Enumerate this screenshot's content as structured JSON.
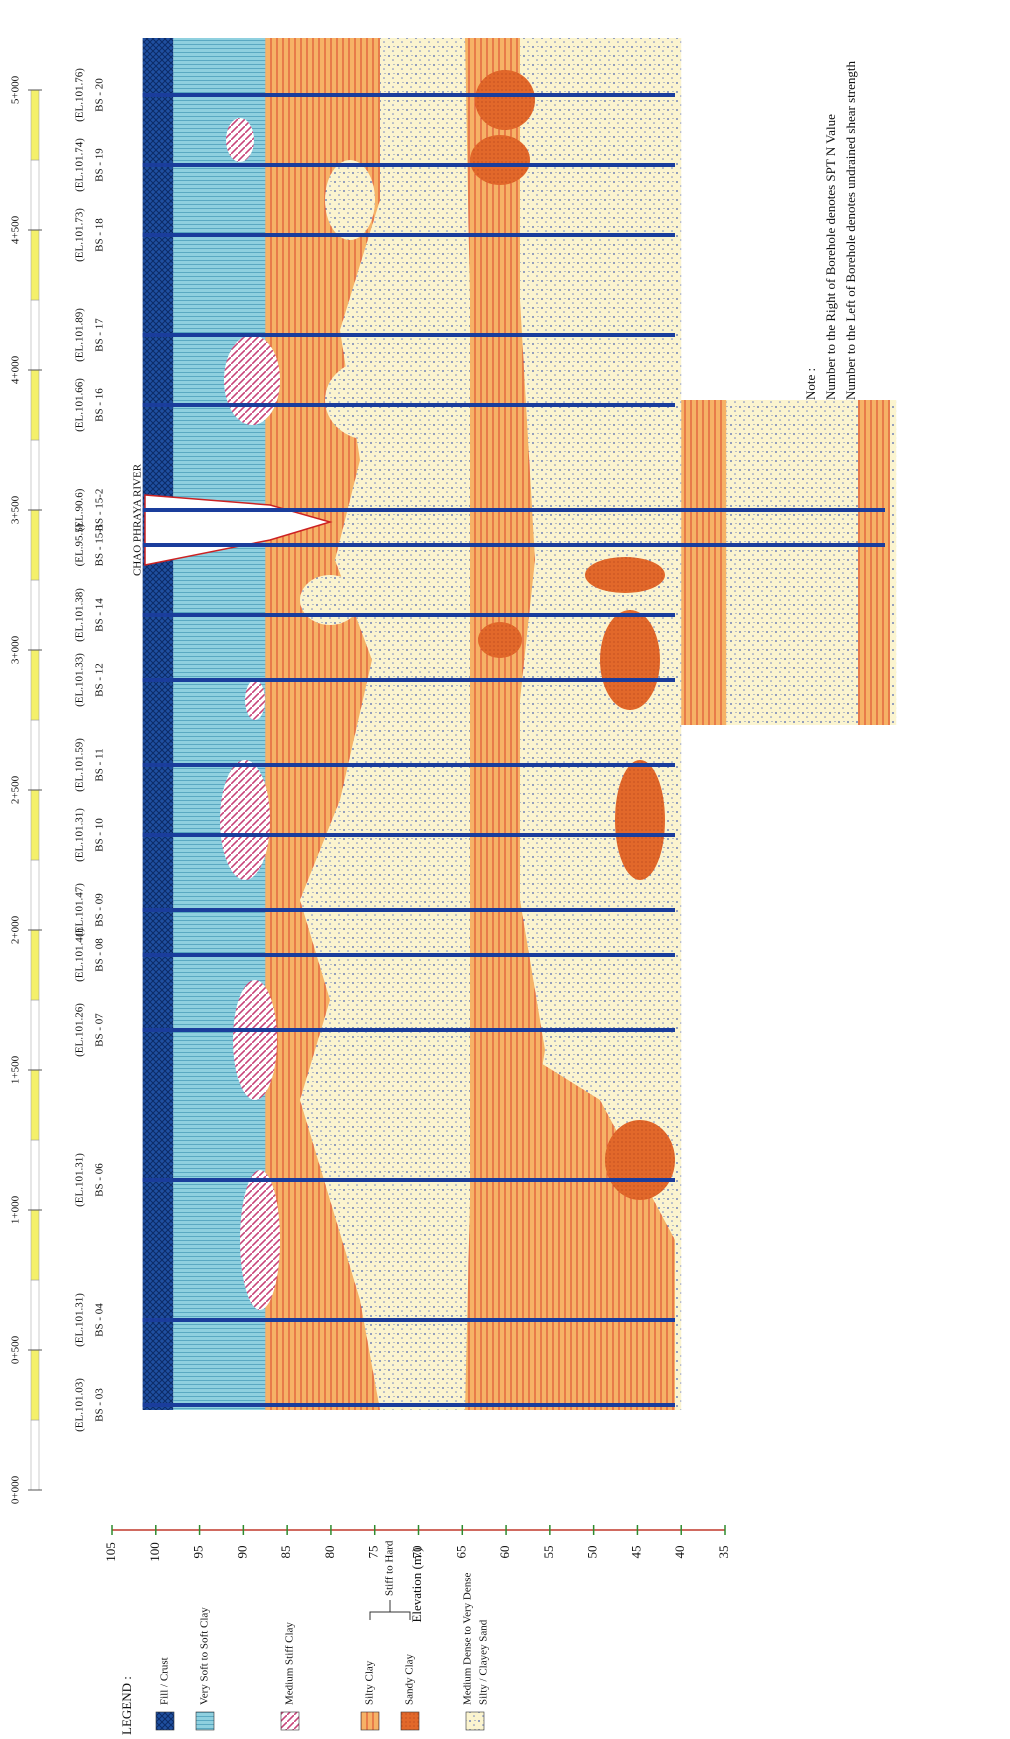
{
  "chainage_labels": [
    "0+000",
    "0+500",
    "1+000",
    "1+500",
    "2+000",
    "2+500",
    "3+000",
    "3+500",
    "4+000",
    "4+500",
    "5+000"
  ],
  "boreholes": [
    {
      "name": "BS - 03",
      "elevation": "(EL.101.03)"
    },
    {
      "name": "BS - 04",
      "elevation": "(EL.101.31)"
    },
    {
      "name": "BS - 06",
      "elevation": "(EL.101.31)"
    },
    {
      "name": "BS - 07",
      "elevation": "(EL.101.26)"
    },
    {
      "name": "BS - 08",
      "elevation": "(EL.101.41)"
    },
    {
      "name": "BS - 09",
      "elevation": "(EL.101.47)"
    },
    {
      "name": "BS - 10",
      "elevation": "(EL.101.31)"
    },
    {
      "name": "BS - 11",
      "elevation": "(EL.101.59)"
    },
    {
      "name": "BS - 12",
      "elevation": "(EL.101.33)"
    },
    {
      "name": "BS - 14",
      "elevation": "(EL.101.38)"
    },
    {
      "name": "BS - 15-1",
      "elevation": "(EL.95.5)"
    },
    {
      "name": "BS - 15-2",
      "elevation": "(EL.90.6)"
    },
    {
      "name": "BS - 16",
      "elevation": "(EL.101.66)"
    },
    {
      "name": "BS - 17",
      "elevation": "(EL.101.89)"
    },
    {
      "name": "BS - 18",
      "elevation": "(EL.101.73)"
    },
    {
      "name": "BS - 19",
      "elevation": "(EL.101.74)"
    },
    {
      "name": "BS - 20",
      "elevation": "(EL.101.76)"
    }
  ],
  "river_label": "CHAO PHRAYA RIVER",
  "elevation_axis": {
    "label": "Elevation (m.)",
    "ticks": [
      105,
      100,
      95,
      90,
      85,
      80,
      75,
      70,
      65,
      60,
      55,
      50,
      45,
      40,
      35
    ]
  },
  "legend": {
    "title": "LEGEND :",
    "items": [
      "Fill / Crust",
      "Very Soft to Soft Clay",
      "Medium Stiff Clay",
      "Silty Clay",
      "Sandy Clay"
    ],
    "brace": "Stiff to Hard",
    "sand": [
      "Medium Dense to Very Dense",
      "Silty / Clayey Sand"
    ]
  },
  "note": {
    "title": "Note :",
    "lines": [
      "Number to the Right of Borehole denotes SPT N Value",
      "Number to the Left of Borehole denotes undrained shear strength"
    ]
  }
}
